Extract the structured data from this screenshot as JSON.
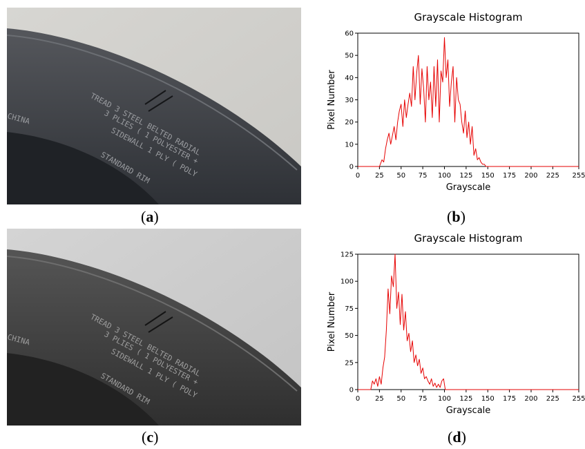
{
  "photos": [
    {
      "id": "a",
      "tread_text": [
        "CHINA",
        "TREAD 3 STEEL BELTED RADIAL",
        "3 PLIES ( 1 POLYESTER +",
        "SIDEWALL 1 PLY ( POLY",
        "STANDARD RIM"
      ],
      "tone": "color"
    },
    {
      "id": "c",
      "tread_text": [
        "CHINA",
        "TREAD 3 STEEL BELTED RADIAL",
        "3 PLIES ( 1 POLYESTER +",
        "SIDEWALL 1 PLY ( POLY",
        "STANDARD RIM"
      ],
      "tone": "gray"
    }
  ],
  "captions": {
    "a": "a",
    "b": "b",
    "c": "c",
    "d": "d"
  },
  "colors": {
    "line": "#e60000",
    "axis": "#000000"
  },
  "chart_data": [
    {
      "type": "line",
      "title": "Grayscale Histogram",
      "xlabel": "Grayscale",
      "ylabel": "Pixel Number",
      "xlim": [
        0,
        255
      ],
      "ylim": [
        0,
        60
      ],
      "xticks": [
        0,
        25,
        50,
        75,
        100,
        125,
        150,
        175,
        200,
        225,
        255
      ],
      "yticks": [
        0,
        10,
        20,
        30,
        40,
        50,
        60
      ],
      "series": [
        {
          "x": [
            0,
            20,
            25,
            28,
            30,
            32,
            34,
            36,
            38,
            40,
            42,
            44,
            46,
            48,
            50,
            52,
            54,
            56,
            58,
            60,
            62,
            64,
            66,
            68,
            70,
            72,
            74,
            76,
            78,
            80,
            82,
            84,
            86,
            88,
            90,
            92,
            94,
            96,
            98,
            100,
            102,
            104,
            106,
            108,
            110,
            112,
            114,
            116,
            118,
            120,
            122,
            124,
            126,
            128,
            130,
            132,
            134,
            136,
            138,
            140,
            142,
            144,
            146,
            148,
            150,
            255
          ],
          "y": [
            0,
            0,
            0,
            3,
            2,
            8,
            12,
            15,
            10,
            14,
            18,
            12,
            20,
            25,
            28,
            18,
            30,
            22,
            28,
            33,
            27,
            45,
            30,
            42,
            50,
            28,
            44,
            35,
            20,
            45,
            30,
            38,
            22,
            45,
            27,
            48,
            20,
            43,
            38,
            58,
            40,
            48,
            27,
            38,
            45,
            20,
            40,
            30,
            28,
            20,
            15,
            25,
            13,
            20,
            10,
            18,
            5,
            8,
            3,
            4,
            2,
            1,
            1,
            0,
            0,
            0
          ]
        }
      ]
    },
    {
      "type": "line",
      "title": "Grayscale Histogram",
      "xlabel": "Grayscale",
      "ylabel": "Pixel Number",
      "xlim": [
        0,
        255
      ],
      "ylim": [
        0,
        125
      ],
      "xticks": [
        0,
        25,
        50,
        75,
        100,
        125,
        150,
        175,
        200,
        225,
        255
      ],
      "yticks": [
        0,
        25,
        50,
        75,
        100,
        125
      ],
      "series": [
        {
          "x": [
            0,
            15,
            17,
            19,
            21,
            23,
            25,
            27,
            29,
            31,
            33,
            35,
            37,
            39,
            41,
            43,
            45,
            47,
            49,
            51,
            53,
            55,
            57,
            59,
            61,
            63,
            65,
            67,
            69,
            71,
            73,
            75,
            77,
            79,
            81,
            83,
            85,
            87,
            89,
            91,
            93,
            95,
            97,
            99,
            101,
            255
          ],
          "y": [
            0,
            0,
            8,
            5,
            10,
            3,
            12,
            5,
            20,
            30,
            55,
            93,
            70,
            105,
            95,
            125,
            75,
            90,
            60,
            88,
            55,
            72,
            45,
            52,
            35,
            45,
            25,
            32,
            22,
            28,
            15,
            20,
            10,
            12,
            8,
            5,
            10,
            3,
            6,
            2,
            5,
            2,
            8,
            10,
            0,
            0
          ]
        }
      ]
    }
  ]
}
